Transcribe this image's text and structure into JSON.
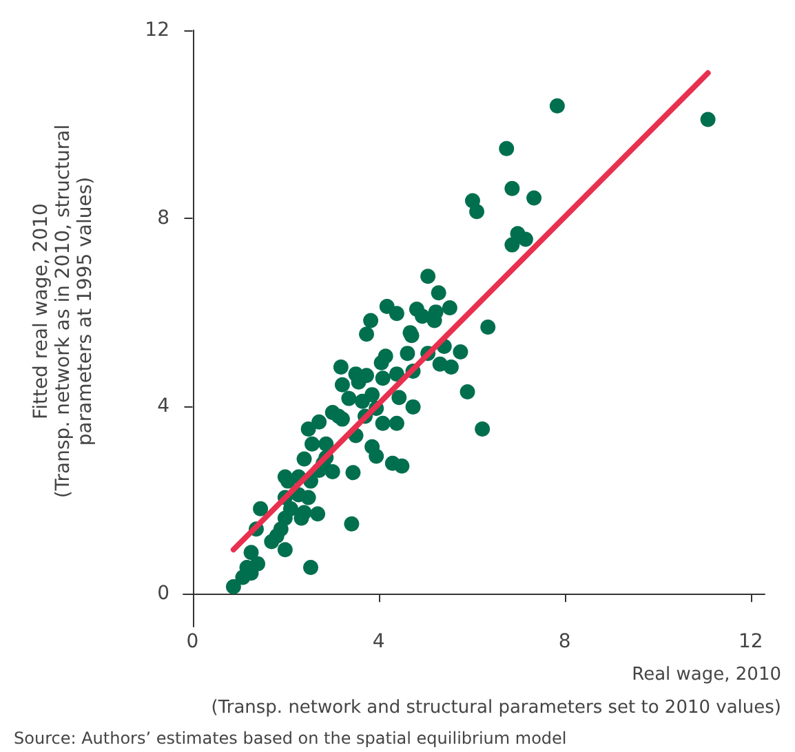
{
  "chart_data": {
    "type": "scatter",
    "xlabel": "Real wage, 2010\n(Transp. network and structural parameters set to 2010 values)",
    "ylabel": "Fitted real wage, 2010\n(Transp. network as in 2010, structural\nparameters at 1995 values)",
    "annotations": [
      "Source: Authors’ estimates based on the spatial equilibrium model"
    ],
    "xlim": [
      -0.2,
      12.3
    ],
    "xticks": [
      0,
      4,
      8,
      12
    ],
    "ylim": [
      -0.7,
      12
    ],
    "yticks": [
      0,
      4,
      8,
      12
    ],
    "grid": false,
    "series": [
      {
        "marker": "circle",
        "color": "#006f4e",
        "x": [
          7.84,
          11.08,
          6.75,
          6.87,
          6.02,
          6.11,
          7.34,
          6.99,
          6.87,
          7.16,
          5.06,
          5.29,
          4.18,
          4.39,
          4.82,
          4.94,
          5.23,
          5.2,
          5.53,
          4.68,
          4.71,
          6.35,
          5.41,
          5.76,
          4.62,
          5.06,
          3.83,
          3.74,
          4.15,
          3.19,
          4.06,
          5.32,
          5.56,
          3.51,
          3.74,
          4.09,
          4.39,
          4.74,
          3.22,
          3.57,
          5.91,
          3.86,
          4.44,
          3.36,
          3.65,
          4.74,
          3.01,
          3.95,
          2.72,
          3.22,
          3.71,
          4.09,
          4.39,
          6.23,
          2.49,
          3.51,
          2.87,
          2.57,
          3.86,
          3.95,
          4.3,
          4.5,
          2.4,
          2.81,
          3.45,
          3.01,
          2.72,
          1.99,
          2.28,
          3.14,
          2.87,
          2.05,
          2.54,
          1.99,
          2.28,
          2.49,
          1.46,
          2.11,
          2.4,
          2.69,
          1.99,
          2.34,
          3.42,
          1.37,
          1.9,
          1.81,
          1.7,
          1.99,
          1.26,
          2.54,
          1.4,
          1.17,
          1.26,
          1.08,
          0.88
        ],
        "values": [
          10.39,
          10.1,
          9.48,
          8.63,
          8.37,
          8.14,
          8.43,
          7.67,
          7.43,
          7.55,
          6.76,
          6.41,
          6.12,
          5.97,
          6.06,
          5.91,
          6.0,
          5.82,
          6.09,
          5.56,
          5.5,
          5.68,
          5.27,
          5.15,
          5.12,
          5.12,
          5.82,
          5.53,
          5.06,
          4.83,
          4.92,
          4.89,
          4.83,
          4.68,
          4.65,
          4.59,
          4.68,
          4.74,
          4.45,
          4.51,
          4.3,
          4.24,
          4.18,
          4.16,
          4.1,
          3.98,
          3.86,
          3.95,
          3.66,
          3.72,
          3.78,
          3.63,
          3.63,
          3.51,
          3.51,
          3.37,
          3.19,
          3.19,
          3.13,
          2.93,
          2.78,
          2.72,
          2.87,
          2.78,
          2.58,
          2.6,
          2.63,
          2.49,
          2.49,
          3.78,
          2.9,
          2.4,
          2.4,
          2.05,
          2.11,
          2.05,
          1.81,
          1.81,
          1.73,
          1.7,
          1.61,
          1.61,
          1.49,
          1.38,
          1.38,
          1.23,
          1.11,
          0.94,
          0.88,
          0.56,
          0.64,
          0.56,
          0.44,
          0.35,
          0.15
        ]
      },
      {
        "type": "line",
        "color": "#e8304f",
        "x": [
          0.88,
          11.08
        ],
        "values": [
          0.94,
          11.09
        ]
      }
    ]
  }
}
